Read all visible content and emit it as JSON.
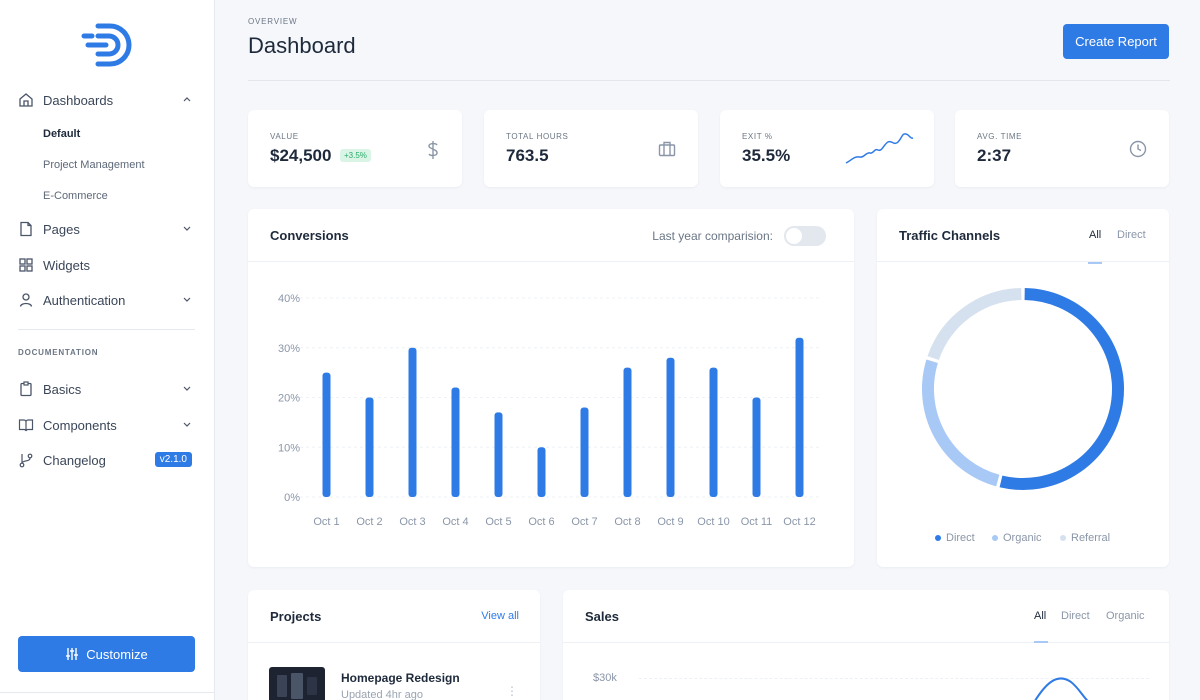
{
  "sidebar": {
    "nav": [
      {
        "label": "Dashboards",
        "icon": "home-icon",
        "expanded": true
      },
      {
        "label": "Pages",
        "icon": "file-icon",
        "expanded": false
      },
      {
        "label": "Widgets",
        "icon": "grid-icon"
      },
      {
        "label": "Authentication",
        "icon": "user-icon",
        "expanded": false
      }
    ],
    "dashboard_sub": [
      "Default",
      "Project Management",
      "E-Commerce"
    ],
    "section_label": "DOCUMENTATION",
    "docs": [
      {
        "label": "Basics",
        "icon": "clipboard-icon"
      },
      {
        "label": "Components",
        "icon": "book-icon"
      },
      {
        "label": "Changelog",
        "icon": "git-branch-icon",
        "badge": "v2.1.0"
      }
    ],
    "customize_label": "Customize"
  },
  "header": {
    "overline": "OVERVIEW",
    "title": "Dashboard",
    "create_label": "Create Report"
  },
  "stats": [
    {
      "label": "VALUE",
      "value": "$24,500",
      "delta": "+3.5%",
      "icon": "dollar-icon"
    },
    {
      "label": "TOTAL HOURS",
      "value": "763.5",
      "icon": "briefcase-icon"
    },
    {
      "label": "EXIT %",
      "value": "35.5%",
      "icon": "sparkline-trend"
    },
    {
      "label": "AVG. TIME",
      "value": "2:37",
      "icon": "clock-icon"
    }
  ],
  "conversions": {
    "title": "Conversions",
    "toggle_label": "Last year comparision:"
  },
  "traffic": {
    "title": "Traffic Channels",
    "tabs": [
      "All",
      "Direct"
    ],
    "legend": [
      "Direct",
      "Organic",
      "Referral"
    ]
  },
  "projects": {
    "title": "Projects",
    "view_all": "View all",
    "items": [
      {
        "name": "Homepage Redesign",
        "updated": "Updated 4hr ago"
      }
    ]
  },
  "sales": {
    "title": "Sales",
    "tabs": [
      "All",
      "Direct",
      "Organic"
    ],
    "y_tick": "$30k"
  },
  "colors": {
    "accent": "#2f7be5",
    "organic": "#a8c8f5",
    "referral": "#d6e1ef"
  },
  "chart_data": [
    {
      "type": "bar",
      "title": "Conversions",
      "categories": [
        "Oct 1",
        "Oct 2",
        "Oct 3",
        "Oct 4",
        "Oct 5",
        "Oct 6",
        "Oct 7",
        "Oct 8",
        "Oct 9",
        "Oct 10",
        "Oct 11",
        "Oct 12"
      ],
      "values": [
        25,
        20,
        30,
        22,
        17,
        10,
        18,
        26,
        28,
        26,
        20,
        32
      ],
      "yticks": [
        "0%",
        "10%",
        "20%",
        "30%",
        "40%"
      ],
      "ylim": [
        0,
        40
      ],
      "grid": true
    },
    {
      "type": "pie",
      "title": "Traffic Channels",
      "labels": [
        "Direct",
        "Organic",
        "Referral"
      ],
      "values": [
        54,
        26,
        20
      ]
    }
  ]
}
